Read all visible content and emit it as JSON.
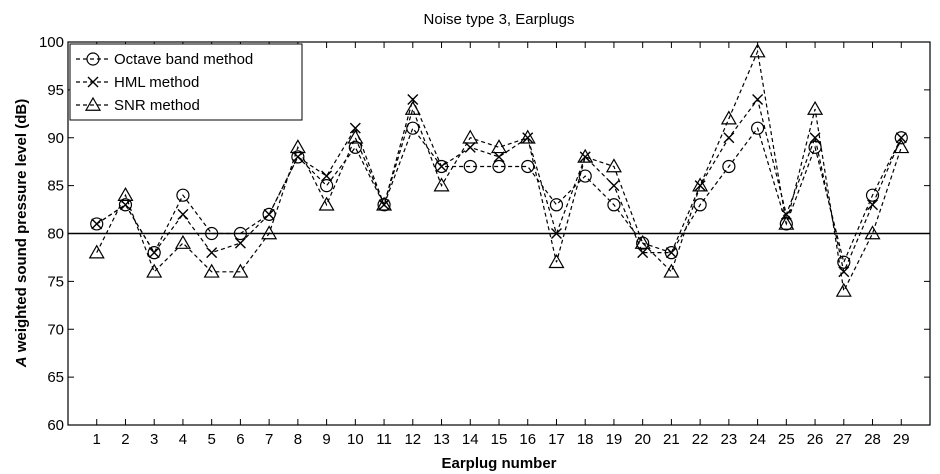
{
  "chart_data": {
    "type": "line",
    "title": "Noise type 3, Earplugs",
    "xlabel": "Earplug number",
    "ylabel_italic": "A",
    "ylabel_rest": " weighted sound pressure level (dB)",
    "x": [
      1,
      2,
      3,
      4,
      5,
      6,
      7,
      8,
      9,
      10,
      11,
      12,
      13,
      14,
      15,
      16,
      17,
      18,
      19,
      20,
      21,
      22,
      23,
      24,
      25,
      26,
      27,
      28,
      29
    ],
    "xlim": [
      0,
      30
    ],
    "ylim": [
      60,
      100
    ],
    "yticks": [
      60,
      65,
      70,
      75,
      80,
      85,
      90,
      95,
      100
    ],
    "grid": false,
    "reference_line": 80,
    "legend_position": "top-left",
    "series": [
      {
        "name": "Octave band method",
        "marker": "circle",
        "values": [
          81,
          83,
          78,
          84,
          80,
          80,
          82,
          88,
          85,
          89,
          83,
          91,
          87,
          87,
          87,
          87,
          83,
          86,
          83,
          79,
          78,
          83,
          87,
          91,
          81,
          89,
          77,
          84,
          90
        ]
      },
      {
        "name": "HML method",
        "marker": "x",
        "values": [
          81,
          83,
          78,
          82,
          78,
          79,
          82,
          88,
          86,
          91,
          83,
          94,
          87,
          89,
          88,
          90,
          80,
          88,
          85,
          78,
          78,
          85,
          90,
          94,
          82,
          90,
          76,
          83,
          90
        ]
      },
      {
        "name": "SNR method",
        "marker": "triangle",
        "values": [
          78,
          84,
          76,
          79,
          76,
          76,
          80,
          89,
          83,
          90,
          83,
          93,
          85,
          90,
          89,
          90,
          77,
          88,
          87,
          79,
          76,
          85,
          92,
          99,
          81,
          93,
          74,
          80,
          89
        ]
      }
    ]
  }
}
